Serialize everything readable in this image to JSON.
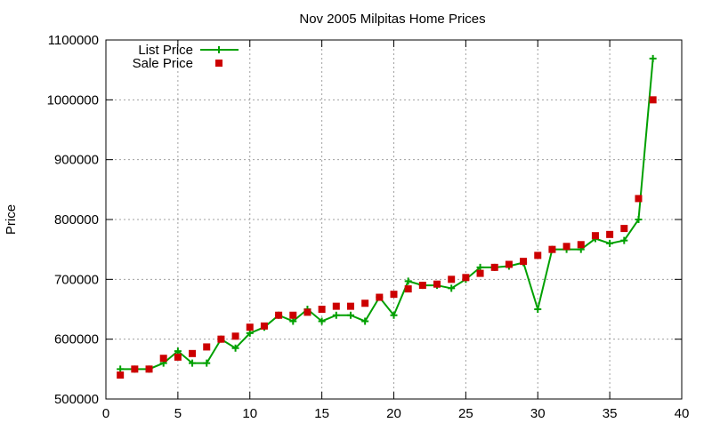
{
  "chart_data": {
    "type": "line",
    "title": "Nov 2005 Milpitas Home Prices",
    "xlabel": "",
    "ylabel": "Price",
    "xlim": [
      0,
      40
    ],
    "ylim": [
      500000,
      1100000
    ],
    "xticks": [
      "0",
      "5",
      "10",
      "15",
      "20",
      "25",
      "30",
      "35",
      "40"
    ],
    "yticks": [
      "500000",
      "600000",
      "700000",
      "800000",
      "900000",
      "1000000",
      "1100000"
    ],
    "grid": true,
    "legend_position": "top-left",
    "x": [
      1,
      2,
      3,
      4,
      5,
      6,
      7,
      8,
      9,
      10,
      11,
      12,
      13,
      14,
      15,
      16,
      17,
      18,
      19,
      20,
      21,
      22,
      23,
      24,
      25,
      26,
      27,
      28,
      29,
      30,
      31,
      32,
      33,
      34,
      35,
      36,
      37,
      38
    ],
    "series": [
      {
        "name": "List Price",
        "style": "linespoints",
        "color": "#00a000",
        "values": [
          550000,
          550000,
          550000,
          560000,
          580000,
          560000,
          560000,
          600000,
          585000,
          610000,
          620000,
          640000,
          630000,
          650000,
          630000,
          640000,
          640000,
          630000,
          670000,
          640000,
          697000,
          690000,
          690000,
          685000,
          700000,
          720000,
          720000,
          722000,
          728000,
          650000,
          750000,
          750000,
          750000,
          768000,
          760000,
          765000,
          800000,
          1069000
        ]
      },
      {
        "name": "Sale Price",
        "style": "points",
        "color": "#cc0000",
        "values": [
          540000,
          550000,
          550000,
          568000,
          570000,
          576000,
          587000,
          600000,
          605000,
          620000,
          622000,
          640000,
          640000,
          645000,
          650000,
          655000,
          655000,
          660000,
          670000,
          675000,
          684000,
          690000,
          692000,
          700000,
          703000,
          710000,
          720000,
          725000,
          730000,
          740000,
          750000,
          755000,
          758000,
          773000,
          775000,
          785000,
          835000,
          1000000
        ]
      }
    ]
  }
}
